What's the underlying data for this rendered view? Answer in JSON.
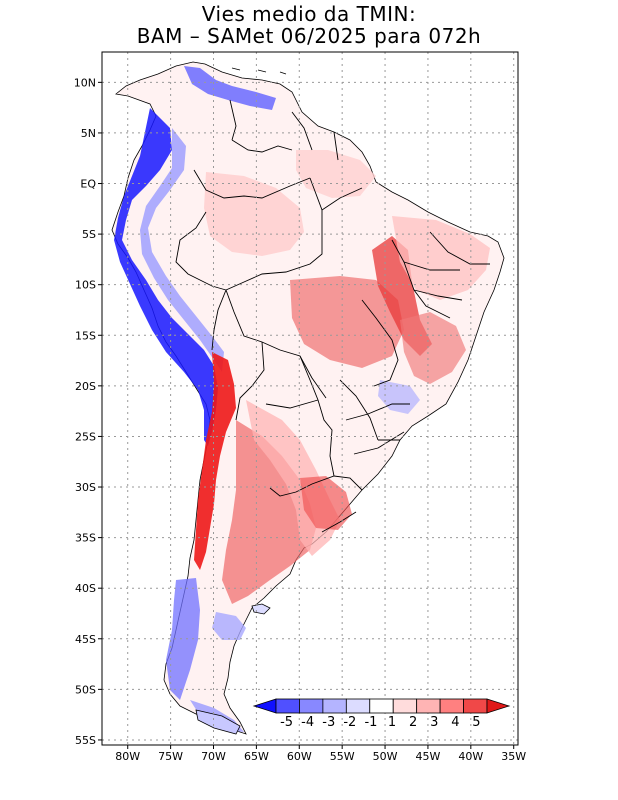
{
  "title": {
    "line1": "Vies medio da TMIN:",
    "line2": "BAM – SAMet 06/2025  para 072h"
  },
  "map": {
    "lat_labels": [
      "10N",
      "5N",
      "EQ",
      "5S",
      "10S",
      "15S",
      "20S",
      "25S",
      "30S",
      "35S",
      "40S",
      "45S",
      "50S",
      "55S"
    ],
    "lon_labels": [
      "80W",
      "75W",
      "70W",
      "65W",
      "60W",
      "55W",
      "50W",
      "45W",
      "40W",
      "35W"
    ],
    "lat_range": [
      -55.5,
      13
    ],
    "lon_range": [
      -83,
      -34.5
    ],
    "grid": "dotted"
  },
  "colorbar": {
    "labels": [
      "-5",
      "-4",
      "-3",
      "-2",
      "-1",
      "1",
      "2",
      "3",
      "4",
      "5"
    ],
    "colors": [
      "#1010ff",
      "#5050ff",
      "#8888ff",
      "#b4b4ff",
      "#dcdcff",
      "#ffffff",
      "#ffdcdc",
      "#ffb4b4",
      "#ff8080",
      "#f04848",
      "#e01818"
    ]
  }
}
